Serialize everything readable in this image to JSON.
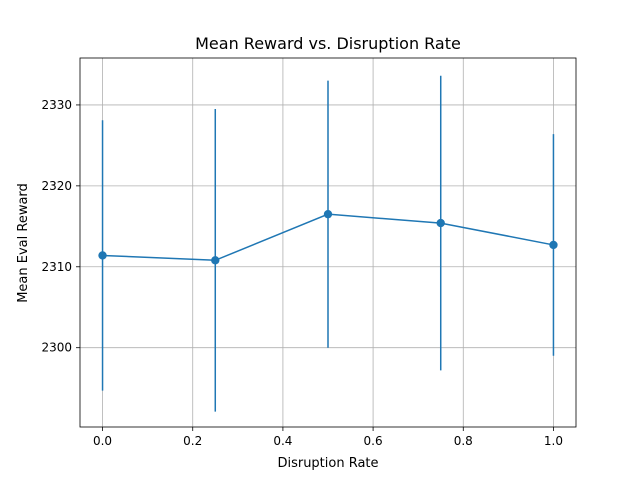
{
  "chart_data": {
    "type": "line",
    "title": "Mean Reward vs. Disruption Rate",
    "xlabel": "Disruption Rate",
    "ylabel": "Mean Eval Reward",
    "xlim": [
      -0.05,
      1.05
    ],
    "ylim": [
      2290.2,
      2335.8
    ],
    "xticks": [
      0.0,
      0.2,
      0.4,
      0.6,
      0.8,
      1.0
    ],
    "xtick_labels": [
      "0.0",
      "0.2",
      "0.4",
      "0.6",
      "0.8",
      "1.0"
    ],
    "yticks": [
      2300,
      2310,
      2320,
      2330
    ],
    "ytick_labels": [
      "2300",
      "2310",
      "2320",
      "2330"
    ],
    "grid": true,
    "color": "#1f77b4",
    "series": [
      {
        "x": [
          0.0,
          0.25,
          0.5,
          0.75,
          1.0
        ],
        "y": [
          2311.4,
          2310.8,
          2316.5,
          2315.4,
          2312.7
        ],
        "yerr": [
          16.7,
          18.7,
          16.5,
          18.2,
          13.7
        ]
      }
    ]
  }
}
